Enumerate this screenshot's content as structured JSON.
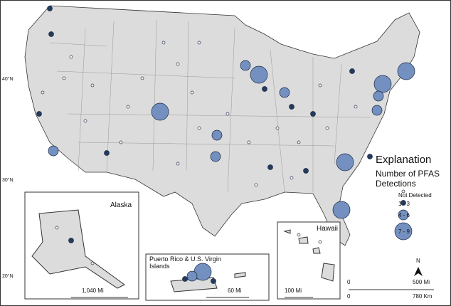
{
  "map": {
    "lat_labels": [
      "40°N",
      "30°N",
      "20°N"
    ],
    "legend": {
      "title": "Explanation",
      "subtitle": "Number of PFAS Detections",
      "items": [
        "Not Detected",
        "1 - 3",
        "4 - 6",
        "7 - 9"
      ]
    },
    "insets": {
      "alaska": {
        "label": "Alaska",
        "scale": "1,040 Mi"
      },
      "puerto_rico": {
        "label": "Puerto Rico & U.S. Virgin Islands",
        "scale": "60 Mi"
      },
      "hawaii": {
        "label": "Hawaii",
        "scale": "100 Mi"
      }
    },
    "scale_bar": {
      "zero_mi": "0",
      "mi": "500 Mi",
      "zero_km": "0",
      "km": "780 Km"
    },
    "north": "N"
  }
}
